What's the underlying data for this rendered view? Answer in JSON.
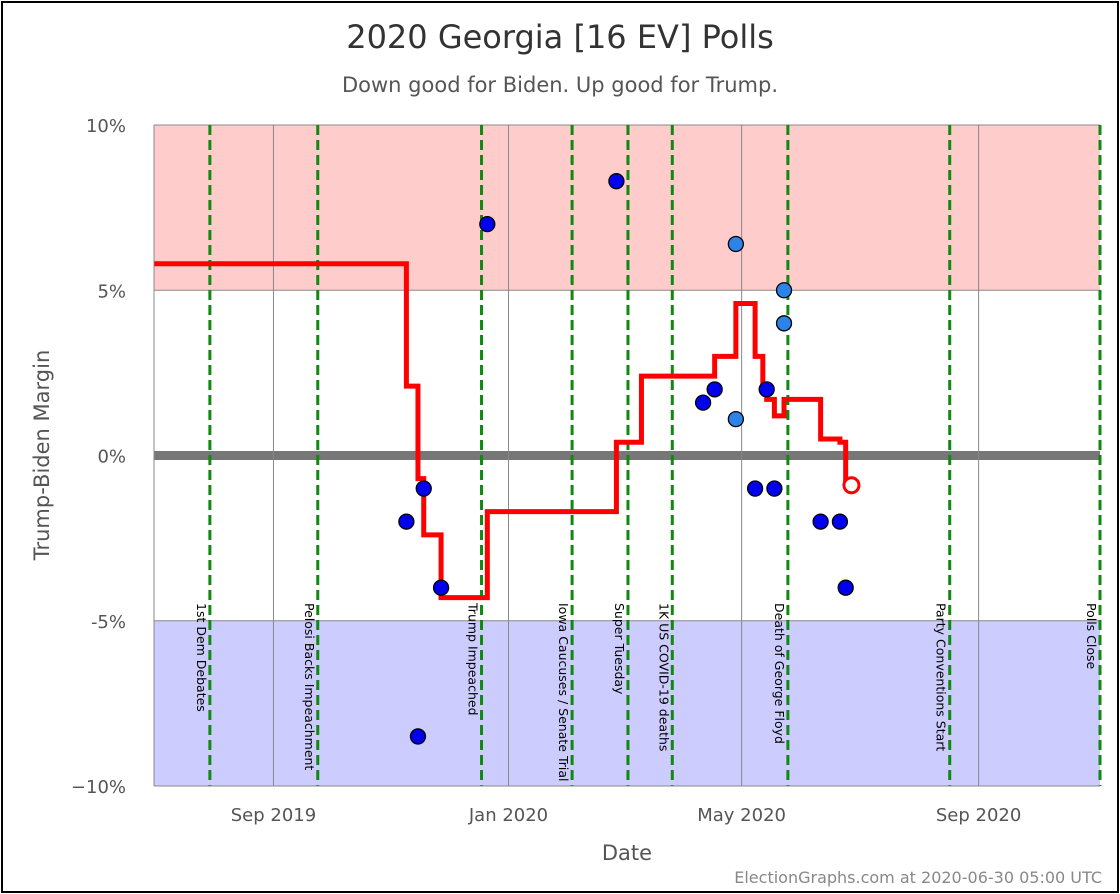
{
  "chart_data": {
    "type": "scatter",
    "title": "2020 Georgia [16 EV] Polls",
    "subtitle": "Down good for Biden. Up good for Trump.",
    "xlabel": "Date",
    "ylabel": "Trump-Biden Margin",
    "credit": "ElectionGraphs.com at 2020-06-30 05:00 UTC",
    "xlim": [
      "2019-07-01",
      "2020-11-03"
    ],
    "ylim": [
      -10,
      10
    ],
    "grid": true,
    "y_ticks": [
      {
        "value": 10,
        "label": "10%"
      },
      {
        "value": 5,
        "label": "5%"
      },
      {
        "value": 0,
        "label": "0%"
      },
      {
        "value": -5,
        "label": "-5%"
      },
      {
        "value": -10,
        "label": "−10%"
      }
    ],
    "x_ticks": [
      {
        "date": "2019-09-01",
        "label": "Sep 2019"
      },
      {
        "date": "2020-01-01",
        "label": "Jan 2020"
      },
      {
        "date": "2020-05-01",
        "label": "May 2020"
      },
      {
        "date": "2020-09-01",
        "label": "Sep 2020"
      }
    ],
    "bands": [
      {
        "from": 5,
        "to": 10,
        "color": "#ffcccc"
      },
      {
        "from": -10,
        "to": -5,
        "color": "#ccccff"
      }
    ],
    "events": [
      {
        "date": "2019-07-30",
        "label": "1st Dem Debates"
      },
      {
        "date": "2019-09-24",
        "label": "Pelosi Backs Impeachment"
      },
      {
        "date": "2019-12-18",
        "label": "Trump Impeached"
      },
      {
        "date": "2020-02-03",
        "label": "Iowa Caucuses / Senate Trial"
      },
      {
        "date": "2020-03-03",
        "label": "Super Tuesday"
      },
      {
        "date": "2020-03-26",
        "label": "1K US COVID-19 deaths"
      },
      {
        "date": "2020-05-25",
        "label": "Death of George Floyd"
      },
      {
        "date": "2020-08-17",
        "label": "Party Conventions Start"
      },
      {
        "date": "2020-11-03",
        "label": "Polls Close"
      }
    ],
    "series": [
      {
        "kind": "polls",
        "points": [
          {
            "date": "2019-11-09",
            "value": -2,
            "color": "#0000ee"
          },
          {
            "date": "2019-11-15",
            "value": -8.5,
            "color": "#0000ee"
          },
          {
            "date": "2019-11-18",
            "value": -1,
            "color": "#0000ee"
          },
          {
            "date": "2019-11-27",
            "value": -4,
            "color": "#0000ee"
          },
          {
            "date": "2019-12-21",
            "value": 7,
            "color": "#0000ee"
          },
          {
            "date": "2020-02-26",
            "value": 8.3,
            "color": "#0000ee"
          },
          {
            "date": "2020-04-11",
            "value": 1.6,
            "color": "#0000ee"
          },
          {
            "date": "2020-04-17",
            "value": 2,
            "color": "#0000ee"
          },
          {
            "date": "2020-04-28",
            "value": 6.4,
            "color": "#2c84e8"
          },
          {
            "date": "2020-04-28",
            "value": 1.1,
            "color": "#2c84e8"
          },
          {
            "date": "2020-05-08",
            "value": -1,
            "color": "#0000ee"
          },
          {
            "date": "2020-05-14",
            "value": 2,
            "color": "#0000ee"
          },
          {
            "date": "2020-05-18",
            "value": -1,
            "color": "#0000ee"
          },
          {
            "date": "2020-05-23",
            "value": 5,
            "color": "#2c84e8"
          },
          {
            "date": "2020-05-23",
            "value": 4,
            "color": "#2c84e8"
          },
          {
            "date": "2020-06-11",
            "value": -2,
            "color": "#0000ee"
          },
          {
            "date": "2020-06-21",
            "value": -2,
            "color": "#0000ee"
          },
          {
            "date": "2020-06-24",
            "value": -4,
            "color": "#0000ee"
          }
        ]
      },
      {
        "kind": "average",
        "color": "#ff0000",
        "steps": [
          {
            "date": "2019-07-01",
            "value": 5.8
          },
          {
            "date": "2019-11-09",
            "value": 2.1
          },
          {
            "date": "2019-11-15",
            "value": -0.7
          },
          {
            "date": "2019-11-18",
            "value": -2.4
          },
          {
            "date": "2019-11-27",
            "value": -4.3
          },
          {
            "date": "2019-12-21",
            "value": -1.7
          },
          {
            "date": "2020-02-26",
            "value": 0.4
          },
          {
            "date": "2020-03-10",
            "value": 2.4
          },
          {
            "date": "2020-04-17",
            "value": 3
          },
          {
            "date": "2020-04-28",
            "value": 4.6
          },
          {
            "date": "2020-05-08",
            "value": 3
          },
          {
            "date": "2020-05-12",
            "value": 2.1
          },
          {
            "date": "2020-05-14",
            "value": 1.7
          },
          {
            "date": "2020-05-18",
            "value": 1.2
          },
          {
            "date": "2020-05-23",
            "value": 1.7
          },
          {
            "date": "2020-06-11",
            "value": 0.5
          },
          {
            "date": "2020-06-21",
            "value": 0.4
          },
          {
            "date": "2020-06-24",
            "value": -0.9
          }
        ],
        "end_date": "2020-06-24",
        "end_marker": {
          "date": "2020-06-27",
          "value": -0.9
        }
      }
    ]
  }
}
